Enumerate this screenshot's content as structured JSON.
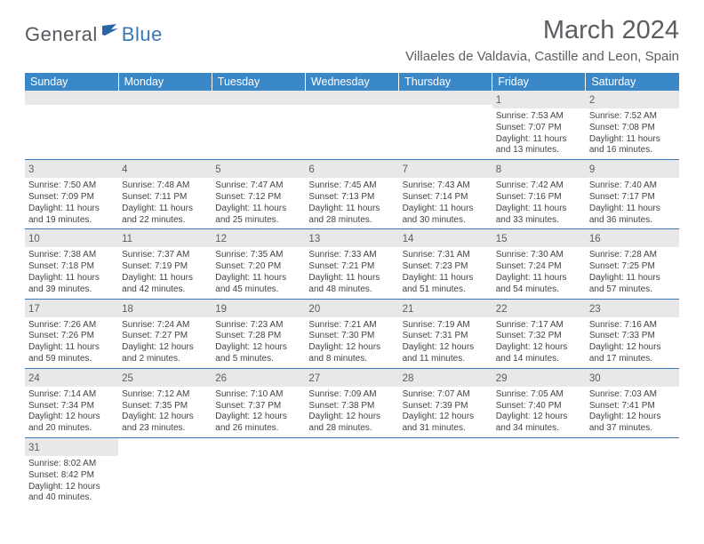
{
  "logo": {
    "text1": "General",
    "text2": "Blue",
    "text1_color": "#555a5f",
    "text2_color": "#3a78b5",
    "icon_color": "#2865a6"
  },
  "title": "March 2024",
  "location": "Villaeles de Valdavia, Castille and Leon, Spain",
  "colors": {
    "header_bg": "#3a88c8",
    "header_text": "#ffffff",
    "border": "#3a78b5",
    "daynum_bg": "#e8e8e8",
    "text": "#404448"
  },
  "weekdays": [
    "Sunday",
    "Monday",
    "Tuesday",
    "Wednesday",
    "Thursday",
    "Friday",
    "Saturday"
  ],
  "weeks": [
    [
      null,
      null,
      null,
      null,
      null,
      {
        "n": "1",
        "sr": "7:53 AM",
        "ss": "7:07 PM",
        "dl": "11 hours and 13 minutes."
      },
      {
        "n": "2",
        "sr": "7:52 AM",
        "ss": "7:08 PM",
        "dl": "11 hours and 16 minutes."
      }
    ],
    [
      {
        "n": "3",
        "sr": "7:50 AM",
        "ss": "7:09 PM",
        "dl": "11 hours and 19 minutes."
      },
      {
        "n": "4",
        "sr": "7:48 AM",
        "ss": "7:11 PM",
        "dl": "11 hours and 22 minutes."
      },
      {
        "n": "5",
        "sr": "7:47 AM",
        "ss": "7:12 PM",
        "dl": "11 hours and 25 minutes."
      },
      {
        "n": "6",
        "sr": "7:45 AM",
        "ss": "7:13 PM",
        "dl": "11 hours and 28 minutes."
      },
      {
        "n": "7",
        "sr": "7:43 AM",
        "ss": "7:14 PM",
        "dl": "11 hours and 30 minutes."
      },
      {
        "n": "8",
        "sr": "7:42 AM",
        "ss": "7:16 PM",
        "dl": "11 hours and 33 minutes."
      },
      {
        "n": "9",
        "sr": "7:40 AM",
        "ss": "7:17 PM",
        "dl": "11 hours and 36 minutes."
      }
    ],
    [
      {
        "n": "10",
        "sr": "7:38 AM",
        "ss": "7:18 PM",
        "dl": "11 hours and 39 minutes."
      },
      {
        "n": "11",
        "sr": "7:37 AM",
        "ss": "7:19 PM",
        "dl": "11 hours and 42 minutes."
      },
      {
        "n": "12",
        "sr": "7:35 AM",
        "ss": "7:20 PM",
        "dl": "11 hours and 45 minutes."
      },
      {
        "n": "13",
        "sr": "7:33 AM",
        "ss": "7:21 PM",
        "dl": "11 hours and 48 minutes."
      },
      {
        "n": "14",
        "sr": "7:31 AM",
        "ss": "7:23 PM",
        "dl": "11 hours and 51 minutes."
      },
      {
        "n": "15",
        "sr": "7:30 AM",
        "ss": "7:24 PM",
        "dl": "11 hours and 54 minutes."
      },
      {
        "n": "16",
        "sr": "7:28 AM",
        "ss": "7:25 PM",
        "dl": "11 hours and 57 minutes."
      }
    ],
    [
      {
        "n": "17",
        "sr": "7:26 AM",
        "ss": "7:26 PM",
        "dl": "11 hours and 59 minutes."
      },
      {
        "n": "18",
        "sr": "7:24 AM",
        "ss": "7:27 PM",
        "dl": "12 hours and 2 minutes."
      },
      {
        "n": "19",
        "sr": "7:23 AM",
        "ss": "7:28 PM",
        "dl": "12 hours and 5 minutes."
      },
      {
        "n": "20",
        "sr": "7:21 AM",
        "ss": "7:30 PM",
        "dl": "12 hours and 8 minutes."
      },
      {
        "n": "21",
        "sr": "7:19 AM",
        "ss": "7:31 PM",
        "dl": "12 hours and 11 minutes."
      },
      {
        "n": "22",
        "sr": "7:17 AM",
        "ss": "7:32 PM",
        "dl": "12 hours and 14 minutes."
      },
      {
        "n": "23",
        "sr": "7:16 AM",
        "ss": "7:33 PM",
        "dl": "12 hours and 17 minutes."
      }
    ],
    [
      {
        "n": "24",
        "sr": "7:14 AM",
        "ss": "7:34 PM",
        "dl": "12 hours and 20 minutes."
      },
      {
        "n": "25",
        "sr": "7:12 AM",
        "ss": "7:35 PM",
        "dl": "12 hours and 23 minutes."
      },
      {
        "n": "26",
        "sr": "7:10 AM",
        "ss": "7:37 PM",
        "dl": "12 hours and 26 minutes."
      },
      {
        "n": "27",
        "sr": "7:09 AM",
        "ss": "7:38 PM",
        "dl": "12 hours and 28 minutes."
      },
      {
        "n": "28",
        "sr": "7:07 AM",
        "ss": "7:39 PM",
        "dl": "12 hours and 31 minutes."
      },
      {
        "n": "29",
        "sr": "7:05 AM",
        "ss": "7:40 PM",
        "dl": "12 hours and 34 minutes."
      },
      {
        "n": "30",
        "sr": "7:03 AM",
        "ss": "7:41 PM",
        "dl": "12 hours and 37 minutes."
      }
    ],
    [
      {
        "n": "31",
        "sr": "8:02 AM",
        "ss": "8:42 PM",
        "dl": "12 hours and 40 minutes."
      },
      null,
      null,
      null,
      null,
      null,
      null
    ]
  ],
  "labels": {
    "sunrise": "Sunrise: ",
    "sunset": "Sunset: ",
    "daylight": "Daylight: "
  }
}
